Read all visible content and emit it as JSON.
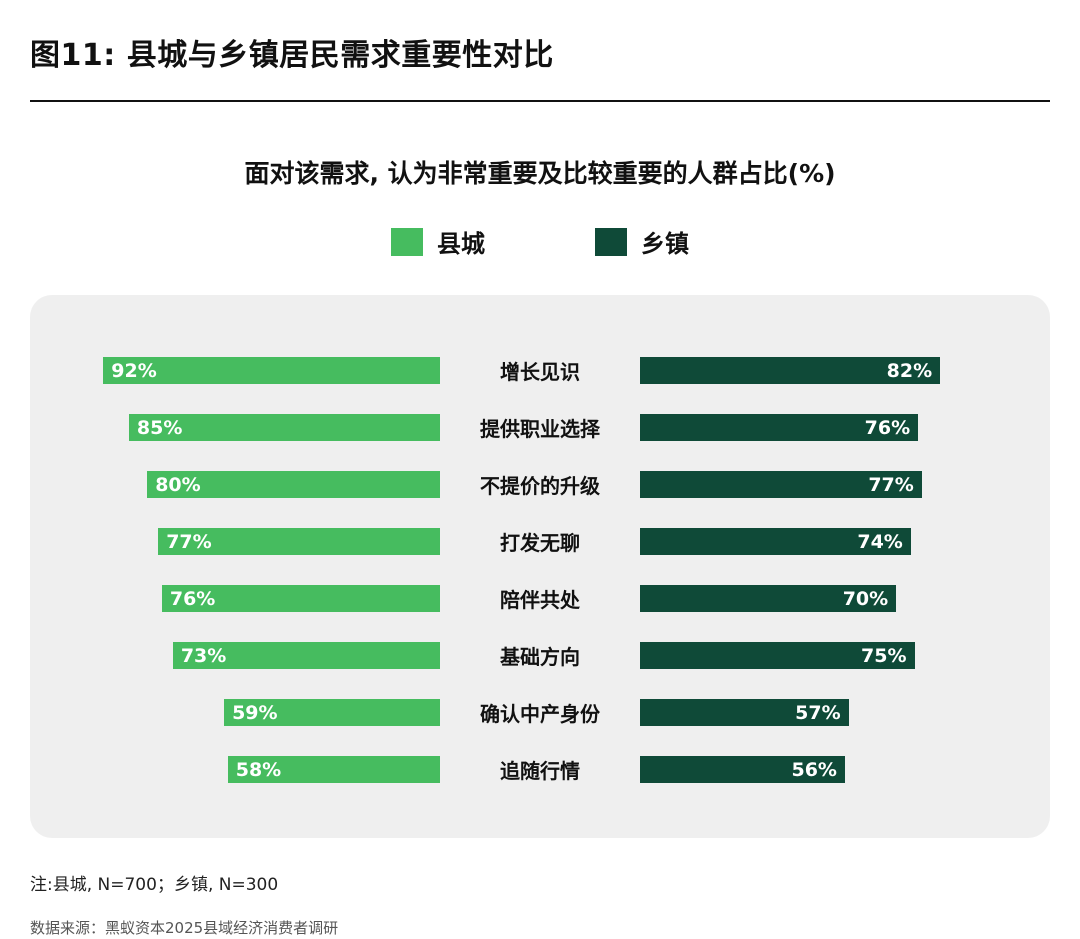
{
  "page": {
    "title": "图11: 县城与乡镇居民需求重要性对比",
    "note": "注:县城, N=700；乡镇, N=300",
    "source": "数据来源：黑蚁资本2025县域经济消费者调研"
  },
  "colors": {
    "county_green": "#46BC5F",
    "township_green": "#0F4A38",
    "panel_bg": "#efefef"
  },
  "chart_data": {
    "type": "bar",
    "orientation": "horizontal-diverging",
    "title": "面对该需求, 认为非常重要及比较重要的人群占比(%)",
    "categories": [
      "增长见识",
      "提供职业选择",
      "不提价的升级",
      "打发无聊",
      "陪伴共处",
      "基础方向",
      "确认中产身份",
      "追随行情"
    ],
    "series": [
      {
        "name": "县城",
        "color": "#46BC5F",
        "values": [
          92,
          85,
          80,
          77,
          76,
          73,
          59,
          58
        ]
      },
      {
        "name": "乡镇",
        "color": "#0F4A38",
        "values": [
          82,
          76,
          77,
          74,
          70,
          75,
          57,
          56
        ]
      }
    ],
    "value_suffix": "%",
    "xlim": [
      0,
      100
    ],
    "grid": false,
    "legend_position": "top-center"
  }
}
